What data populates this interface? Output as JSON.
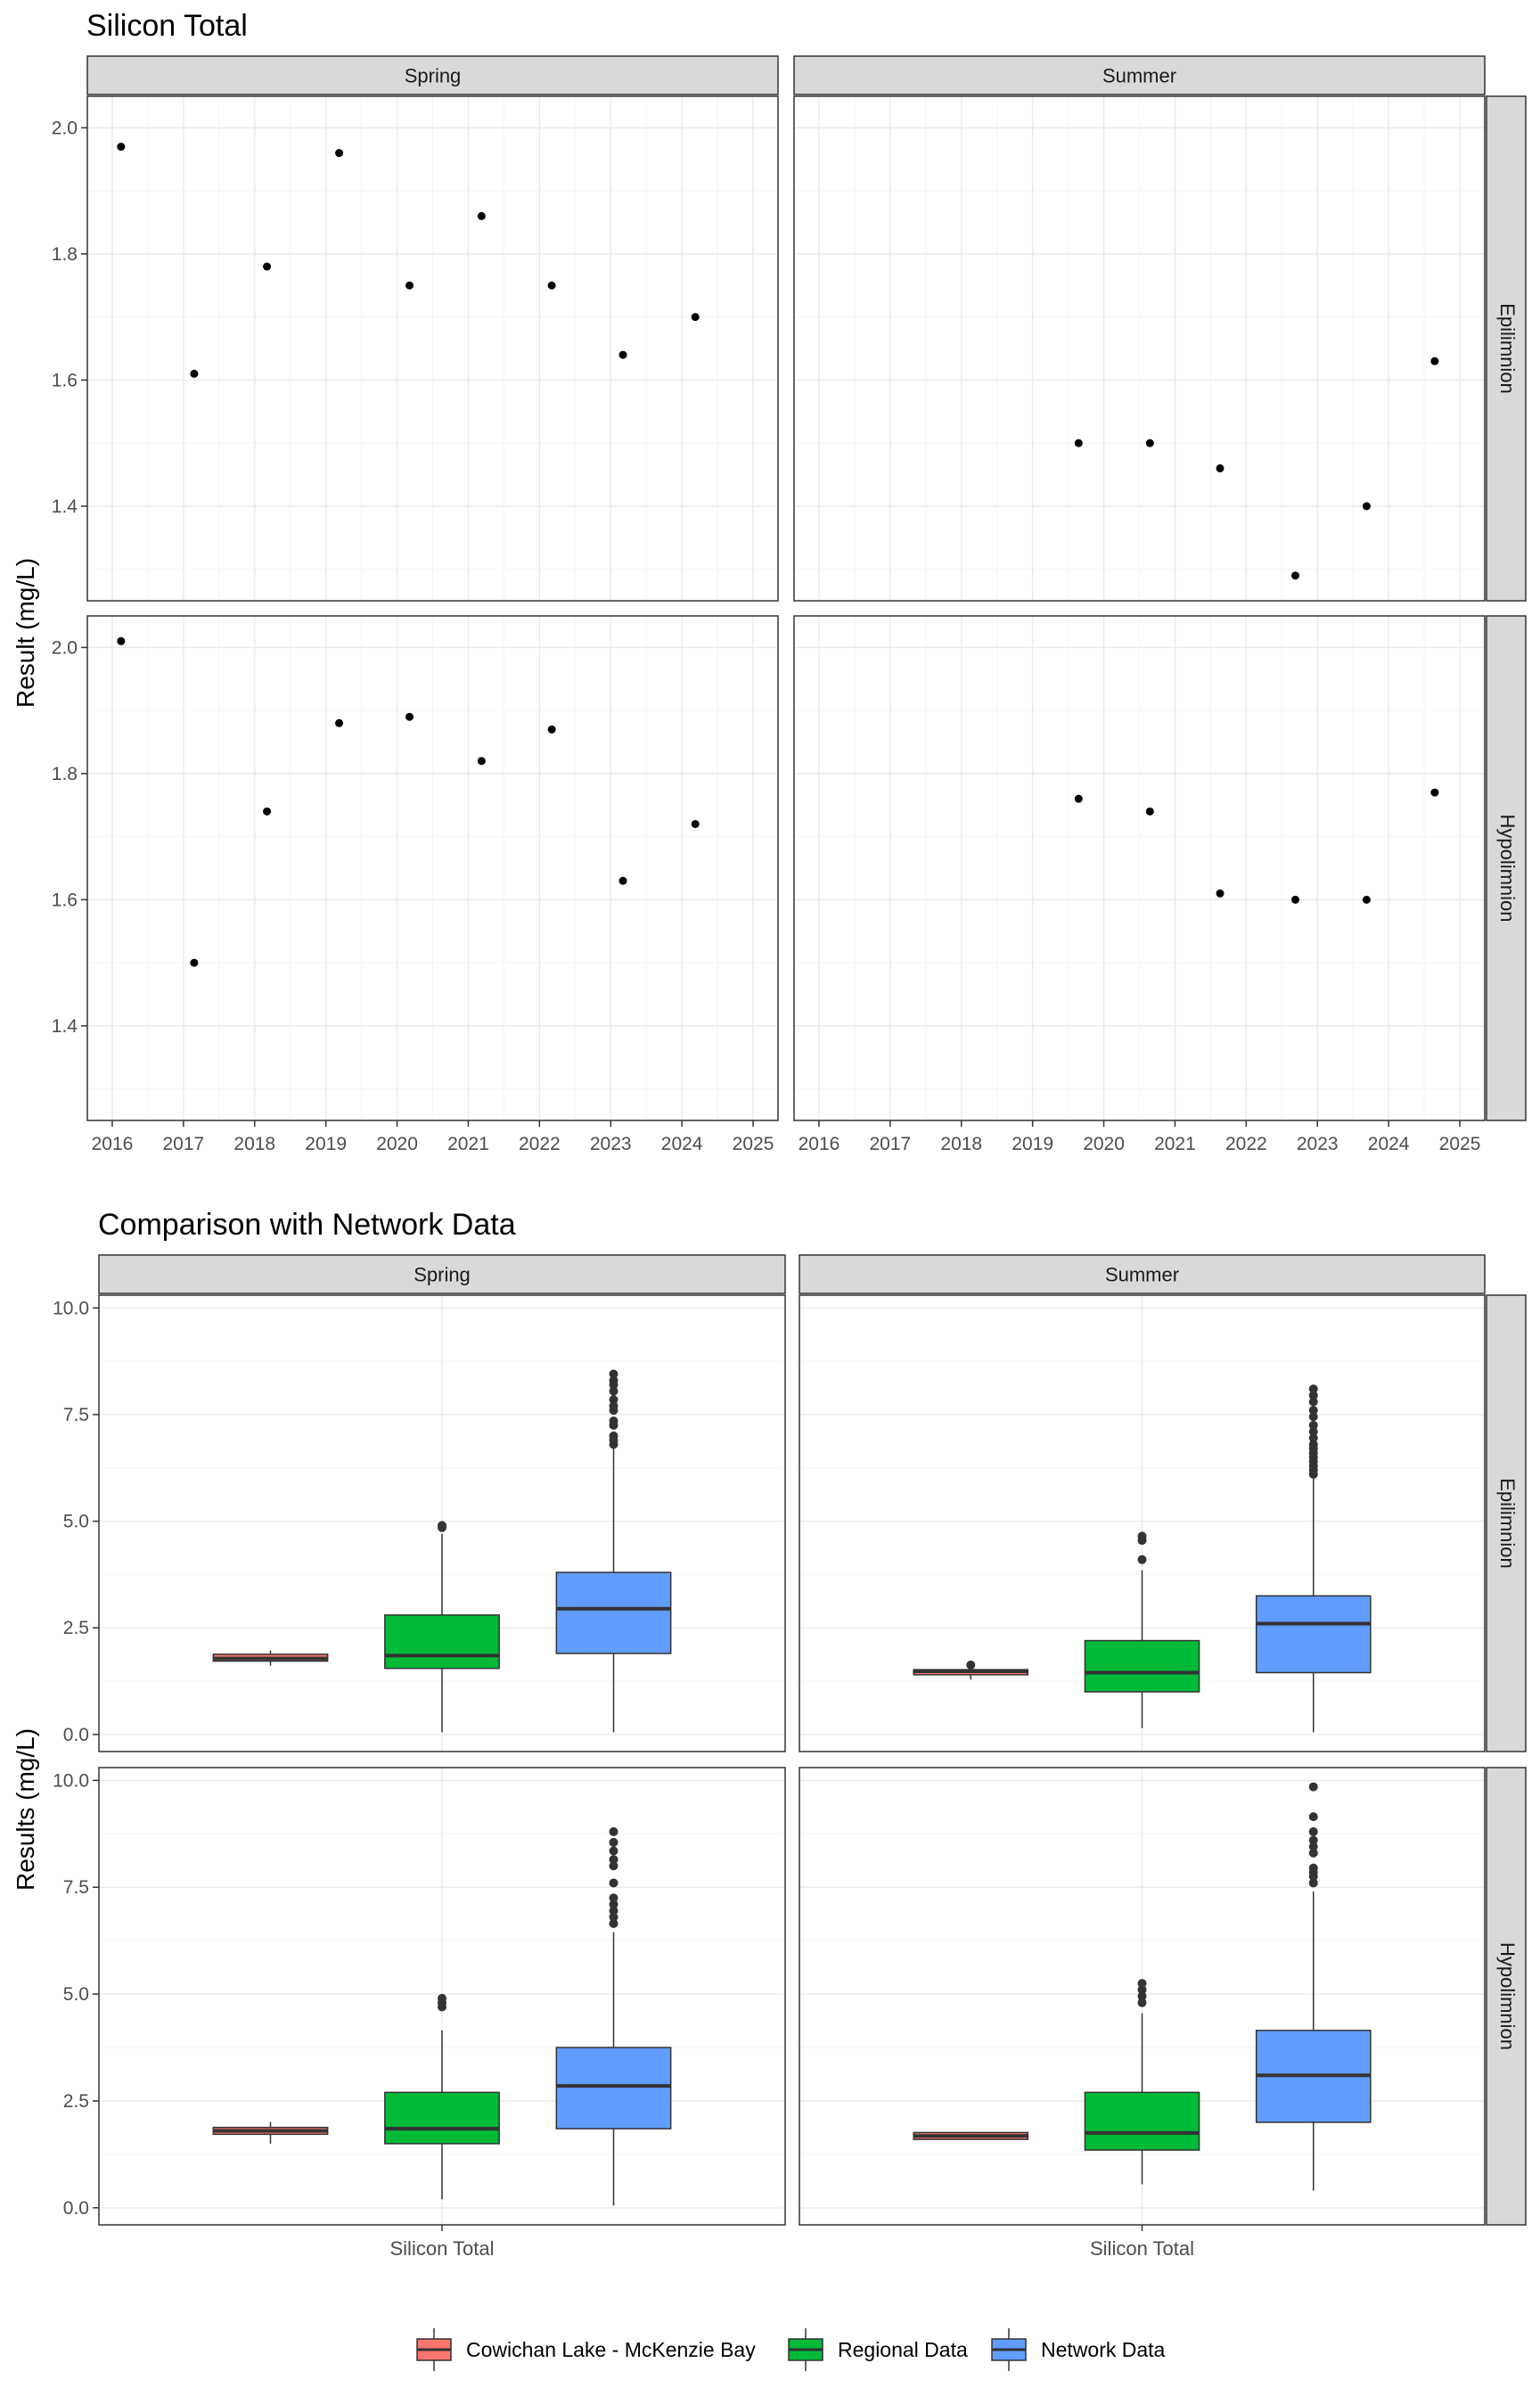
{
  "chart_data": [
    {
      "type": "scatter",
      "title": "Silicon Total",
      "ylabel": "Result (mg/L)",
      "xlabel": "",
      "ylim": [
        1.25,
        2.05
      ],
      "xlim": [
        2015.65,
        2025.35
      ],
      "x_ticks": [
        2016,
        2017,
        2018,
        2019,
        2020,
        2021,
        2022,
        2023,
        2024,
        2025
      ],
      "y_ticks": [
        1.4,
        1.6,
        1.8,
        2.0
      ],
      "y_tick_labels": [
        "1.4",
        "1.6",
        "1.8",
        "2.0"
      ],
      "grid": true,
      "facet_cols": [
        "Spring",
        "Summer"
      ],
      "facet_rows": [
        "Epilimnion",
        "Hypolimnion"
      ],
      "panels": [
        {
          "col": "Spring",
          "row": "Epilimnion",
          "points": [
            {
              "x": "2016-02-15",
              "y": 1.97
            },
            {
              "x": "2017-02-25",
              "y": 1.61
            },
            {
              "x": "2018-03-05",
              "y": 1.78
            },
            {
              "x": "2019-03-10",
              "y": 1.96
            },
            {
              "x": "2020-03-05",
              "y": 1.75
            },
            {
              "x": "2021-03-10",
              "y": 1.86
            },
            {
              "x": "2022-03-05",
              "y": 1.75
            },
            {
              "x": "2023-03-05",
              "y": 1.64
            },
            {
              "x": "2024-03-10",
              "y": 1.7
            }
          ]
        },
        {
          "col": "Summer",
          "row": "Epilimnion",
          "points": [
            {
              "x": "2019-08-25",
              "y": 1.5
            },
            {
              "x": "2020-08-25",
              "y": 1.5
            },
            {
              "x": "2021-08-20",
              "y": 1.46
            },
            {
              "x": "2022-09-10",
              "y": 1.29
            },
            {
              "x": "2023-09-10",
              "y": 1.4
            },
            {
              "x": "2024-08-25",
              "y": 1.63
            }
          ]
        },
        {
          "col": "Spring",
          "row": "Hypolimnion",
          "points": [
            {
              "x": "2016-02-15",
              "y": 2.01
            },
            {
              "x": "2017-02-25",
              "y": 1.5
            },
            {
              "x": "2018-03-05",
              "y": 1.74
            },
            {
              "x": "2019-03-10",
              "y": 1.88
            },
            {
              "x": "2020-03-05",
              "y": 1.89
            },
            {
              "x": "2021-03-10",
              "y": 1.82
            },
            {
              "x": "2022-03-05",
              "y": 1.87
            },
            {
              "x": "2023-03-05",
              "y": 1.63
            },
            {
              "x": "2024-03-10",
              "y": 1.72
            }
          ]
        },
        {
          "col": "Summer",
          "row": "Hypolimnion",
          "points": [
            {
              "x": "2019-08-25",
              "y": 1.76
            },
            {
              "x": "2020-08-25",
              "y": 1.74
            },
            {
              "x": "2021-08-20",
              "y": 1.61
            },
            {
              "x": "2022-09-10",
              "y": 1.6
            },
            {
              "x": "2023-09-10",
              "y": 1.6
            },
            {
              "x": "2024-08-25",
              "y": 1.77
            }
          ]
        }
      ]
    },
    {
      "type": "box",
      "title": "Comparison with Network Data",
      "ylabel": "Results (mg/L)",
      "xlabel": "",
      "x_category": "Silicon Total",
      "ylim": [
        -0.4,
        10.3
      ],
      "y_ticks": [
        0,
        2.5,
        5,
        7.5,
        10
      ],
      "y_tick_labels": [
        "0.0",
        "2.5",
        "5.0",
        "7.5",
        "10.0"
      ],
      "grid": true,
      "facet_cols": [
        "Spring",
        "Summer"
      ],
      "facet_rows": [
        "Epilimnion",
        "Hypolimnion"
      ],
      "legend": {
        "position": "bottom",
        "entries": [
          {
            "label": "Cowichan Lake - McKenzie Bay",
            "color": "#F8766D"
          },
          {
            "label": "Regional Data",
            "color": "#00BA38"
          },
          {
            "label": "Network Data",
            "color": "#619CFF"
          }
        ]
      },
      "panels": [
        {
          "col": "Spring",
          "row": "Epilimnion",
          "boxes": [
            {
              "group": "Cowichan Lake - McKenzie Bay",
              "min": 1.61,
              "q1": 1.72,
              "median": 1.78,
              "q3": 1.88,
              "max": 1.97,
              "outliers": []
            },
            {
              "group": "Regional Data",
              "min": 0.05,
              "q1": 1.55,
              "median": 1.85,
              "q3": 2.8,
              "max": 4.7,
              "outliers": [
                4.85,
                4.9
              ]
            },
            {
              "group": "Network Data",
              "min": 0.05,
              "q1": 1.9,
              "median": 2.95,
              "q3": 3.8,
              "max": 6.7,
              "outliers": [
                6.8,
                6.9,
                7.0,
                7.25,
                7.35,
                7.6,
                7.7,
                7.85,
                8.05,
                8.2,
                8.3,
                8.45
              ]
            }
          ]
        },
        {
          "col": "Summer",
          "row": "Epilimnion",
          "boxes": [
            {
              "group": "Cowichan Lake - McKenzie Bay",
              "min": 1.29,
              "q1": 1.4,
              "median": 1.48,
              "q3": 1.52,
              "max": 1.52,
              "outliers": [
                1.63
              ]
            },
            {
              "group": "Regional Data",
              "min": 0.15,
              "q1": 1.0,
              "median": 1.45,
              "q3": 2.2,
              "max": 3.85,
              "outliers": [
                4.1,
                4.55,
                4.65
              ]
            },
            {
              "group": "Network Data",
              "min": 0.05,
              "q1": 1.45,
              "median": 2.6,
              "q3": 3.25,
              "max": 6.0,
              "outliers": [
                6.1,
                6.2,
                6.3,
                6.4,
                6.5,
                6.6,
                6.7,
                6.8,
                6.95,
                7.1,
                7.25,
                7.45,
                7.6,
                7.8,
                7.95,
                8.1
              ]
            }
          ]
        },
        {
          "col": "Spring",
          "row": "Hypolimnion",
          "boxes": [
            {
              "group": "Cowichan Lake - McKenzie Bay",
              "min": 1.5,
              "q1": 1.72,
              "median": 1.8,
              "q3": 1.88,
              "max": 2.01,
              "outliers": []
            },
            {
              "group": "Regional Data",
              "min": 0.2,
              "q1": 1.5,
              "median": 1.85,
              "q3": 2.7,
              "max": 4.15,
              "outliers": [
                4.7,
                4.8,
                4.9
              ]
            },
            {
              "group": "Network Data",
              "min": 0.05,
              "q1": 1.85,
              "median": 2.85,
              "q3": 3.75,
              "max": 6.45,
              "outliers": [
                6.65,
                6.8,
                6.95,
                7.1,
                7.25,
                7.6,
                8.0,
                8.15,
                8.35,
                8.55,
                8.8
              ]
            }
          ]
        },
        {
          "col": "Summer",
          "row": "Hypolimnion",
          "boxes": [
            {
              "group": "Cowichan Lake - McKenzie Bay",
              "min": 1.6,
              "q1": 1.6,
              "median": 1.68,
              "q3": 1.76,
              "max": 1.77,
              "outliers": []
            },
            {
              "group": "Regional Data",
              "min": 0.55,
              "q1": 1.35,
              "median": 1.75,
              "q3": 2.7,
              "max": 4.55,
              "outliers": [
                4.8,
                4.95,
                5.1,
                5.25
              ]
            },
            {
              "group": "Network Data",
              "min": 0.4,
              "q1": 2.0,
              "median": 3.1,
              "q3": 4.15,
              "max": 7.4,
              "outliers": [
                7.6,
                7.75,
                7.85,
                7.95,
                8.3,
                8.45,
                8.6,
                8.8,
                9.15,
                9.85
              ]
            }
          ]
        }
      ]
    }
  ]
}
